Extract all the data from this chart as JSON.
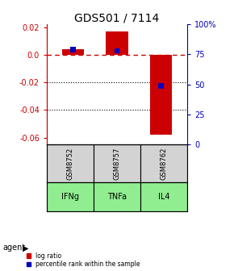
{
  "title": "GDS501 / 7114",
  "samples": [
    "GSM8752",
    "GSM8757",
    "GSM8762"
  ],
  "agents": [
    "IFNg",
    "TNFa",
    "IL4"
  ],
  "log_ratio": [
    0.004,
    0.017,
    -0.058
  ],
  "percentile": [
    79,
    78,
    49
  ],
  "ylim_left": [
    -0.065,
    0.022
  ],
  "ylim_right": [
    0,
    100
  ],
  "yticks_left": [
    0.02,
    0.0,
    -0.02,
    -0.04,
    -0.06
  ],
  "yticks_right": [
    100,
    75,
    50,
    25,
    0
  ],
  "bar_color_red": "#cc0000",
  "bar_color_blue": "#0000bb",
  "dashed_line_color": "#cc0000",
  "dotted_line_color": "#000000",
  "agent_bg_color": "#90ee90",
  "sample_bg_color": "#d3d3d3",
  "title_fontsize": 10,
  "tick_fontsize": 7,
  "bar_width": 0.5,
  "blue_bar_width": 0.12,
  "legend_red_label": "log ratio",
  "legend_blue_label": "percentile rank within the sample"
}
